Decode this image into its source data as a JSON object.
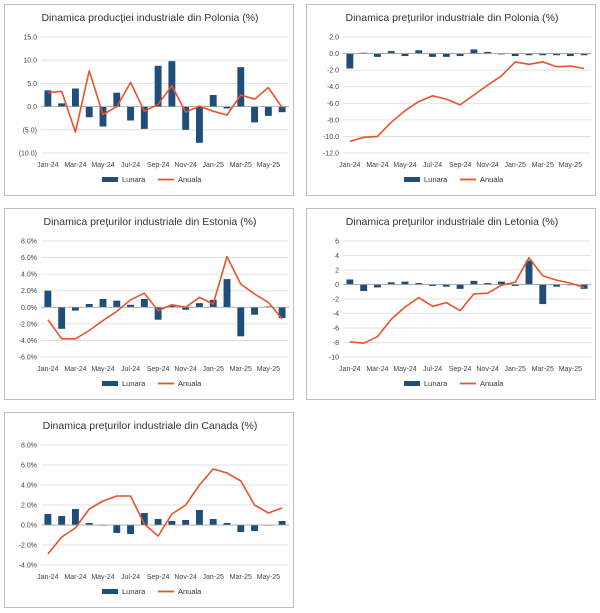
{
  "colors": {
    "monthly": "#1f4e79",
    "annual": "#e8532a",
    "grid": "#d9d9d9",
    "axis": "#9e9e9e"
  },
  "legend": {
    "monthly": "Lunara",
    "annual": "Anuala"
  },
  "chart_data": [
    {
      "type": "bar",
      "title": "Dinamica producţiei industriale din Polonia (%)",
      "categories": [
        "Jan-24",
        "Feb-24",
        "Mar-24",
        "Apr-24",
        "May-24",
        "Jun-24",
        "Jul-24",
        "Aug-24",
        "Sep-24",
        "Oct-24",
        "Nov-24",
        "Dec-24",
        "Jan-25",
        "Feb-25",
        "Mar-25",
        "Apr-25",
        "May-25",
        "Jun-25"
      ],
      "x_tick_labels": [
        "Jan-24",
        "Mar-24",
        "May-24",
        "Jul-24",
        "Sep-24",
        "Nov-24",
        "Jan-25",
        "Mar-25",
        "May-25"
      ],
      "ylim": [
        -10,
        15
      ],
      "y_ticks": [
        15,
        10,
        5,
        0,
        -5,
        -10
      ],
      "y_tick_labels": [
        "15.0",
        "10.0",
        "5.0",
        "0.0",
        "(5.0)",
        "(10.0)"
      ],
      "series": [
        {
          "name": "Lunara",
          "type": "bar",
          "values": [
            3.5,
            0.7,
            3.9,
            -2.3,
            -4.3,
            3.0,
            -3.0,
            -4.8,
            8.8,
            9.8,
            -5.0,
            -7.8,
            2.5,
            -0.4,
            8.5,
            -3.4,
            -2.0,
            -1.2
          ]
        },
        {
          "name": "Anuala",
          "type": "line",
          "values": [
            3.0,
            3.3,
            -5.5,
            7.7,
            -1.7,
            0.0,
            5.2,
            -1.0,
            0.5,
            4.5,
            -1.2,
            0.1,
            -1.0,
            -1.8,
            2.5,
            1.6,
            4.1,
            -0.2
          ]
        }
      ],
      "grid": "horizontal",
      "legend": "bottom"
    },
    {
      "type": "bar",
      "title": "Dinamica preţurilor industriale din Polonia (%)",
      "categories": [
        "Jan-24",
        "Feb-24",
        "Mar-24",
        "Apr-24",
        "May-24",
        "Jun-24",
        "Jul-24",
        "Aug-24",
        "Sep-24",
        "Oct-24",
        "Nov-24",
        "Dec-24",
        "Jan-25",
        "Feb-25",
        "Mar-25",
        "Apr-25",
        "May-25",
        "Jun-25"
      ],
      "x_tick_labels": [
        "Jan-24",
        "Mar-24",
        "May-24",
        "Jul-24",
        "Sep-24",
        "Nov-24",
        "Jan-25",
        "Mar-25",
        "May-25"
      ],
      "ylim": [
        -12,
        2
      ],
      "y_ticks": [
        2,
        0,
        -2,
        -4,
        -6,
        -8,
        -10,
        -12
      ],
      "y_tick_labels": [
        "2.0",
        "0.0",
        "-2.0",
        "-4.0",
        "-6.0",
        "-8.0",
        "-10.0",
        "-12.0"
      ],
      "series": [
        {
          "name": "Lunara",
          "type": "bar",
          "values": [
            -1.8,
            0.1,
            -0.4,
            0.3,
            -0.3,
            0.4,
            -0.4,
            -0.4,
            -0.3,
            0.5,
            0.2,
            -0.1,
            -0.3,
            -0.2,
            -0.2,
            -0.2,
            -0.3,
            -0.2
          ]
        },
        {
          "name": "Anuala",
          "type": "line",
          "values": [
            -10.6,
            -10.1,
            -10.0,
            -8.3,
            -6.9,
            -5.8,
            -5.1,
            -5.5,
            -6.2,
            -5.0,
            -3.8,
            -2.7,
            -1.0,
            -1.3,
            -1.0,
            -1.6,
            -1.5,
            -1.8
          ]
        }
      ],
      "grid": "horizontal",
      "legend": "bottom"
    },
    {
      "type": "bar",
      "title": "Dinamica preţurilor industriale din Estonia (%)",
      "categories": [
        "Jan-24",
        "Feb-24",
        "Mar-24",
        "Apr-24",
        "May-24",
        "Jun-24",
        "Jul-24",
        "Aug-24",
        "Sep-24",
        "Oct-24",
        "Nov-24",
        "Dec-24",
        "Jan-25",
        "Feb-25",
        "Mar-25",
        "Apr-25",
        "May-25",
        "Jun-25"
      ],
      "x_tick_labels": [
        "Jan-24",
        "Mar-24",
        "May-24",
        "Jul-24",
        "Sep-24",
        "Nov-24",
        "Jan-25",
        "Mar-25",
        "May-25"
      ],
      "ylim": [
        -6,
        8
      ],
      "y_ticks": [
        8,
        6,
        4,
        2,
        0,
        -2,
        -4,
        -6
      ],
      "y_tick_labels": [
        "8.0%",
        "6.0%",
        "4.0%",
        "2.0%",
        "0.0%",
        "-2.0%",
        "-4.0%",
        "-6.0%"
      ],
      "series": [
        {
          "name": "Lunara",
          "type": "bar",
          "values": [
            2.0,
            -2.6,
            -0.4,
            0.4,
            1.0,
            0.8,
            0.3,
            1.0,
            -1.5,
            0.2,
            -0.3,
            0.5,
            0.9,
            3.4,
            -3.5,
            -0.9,
            0.1,
            -1.3
          ]
        },
        {
          "name": "Anuala",
          "type": "line",
          "values": [
            -1.5,
            -3.8,
            -3.8,
            -2.8,
            -1.6,
            -0.5,
            0.9,
            1.7,
            -0.4,
            0.3,
            0.0,
            1.2,
            0.4,
            6.1,
            2.8,
            1.6,
            0.6,
            -1.4
          ]
        }
      ],
      "grid": "horizontal",
      "legend": "bottom"
    },
    {
      "type": "bar",
      "title": "Dinamica preţurilor industriale din Letonia (%)",
      "categories": [
        "Jan-24",
        "Feb-24",
        "Mar-24",
        "Apr-24",
        "May-24",
        "Jun-24",
        "Jul-24",
        "Aug-24",
        "Sep-24",
        "Oct-24",
        "Nov-24",
        "Dec-24",
        "Jan-25",
        "Feb-25",
        "Mar-25",
        "Apr-25",
        "May-25",
        "Jun-25"
      ],
      "x_tick_labels": [
        "Jan-24",
        "Mar-24",
        "May-24",
        "Jul-24",
        "Sep-24",
        "Nov-24",
        "Jan-25",
        "Mar-25",
        "May-25"
      ],
      "ylim": [
        -10,
        6
      ],
      "y_ticks": [
        6,
        4,
        2,
        0,
        -2,
        -4,
        -6,
        -8,
        -10
      ],
      "y_tick_labels": [
        "6",
        "4",
        "2",
        "0",
        "-2",
        "-4",
        "-6",
        "-8",
        "-10"
      ],
      "series": [
        {
          "name": "Lunara",
          "type": "bar",
          "values": [
            0.7,
            -0.9,
            -0.4,
            0.3,
            0.4,
            0.2,
            -0.2,
            -0.3,
            -0.6,
            0.5,
            0.2,
            0.4,
            -0.2,
            3.3,
            -2.7,
            -0.3,
            -0.1,
            -0.6
          ]
        },
        {
          "name": "Anuala",
          "type": "line",
          "values": [
            -7.9,
            -8.1,
            -7.2,
            -4.8,
            -3.1,
            -1.8,
            -3.0,
            -2.5,
            -3.6,
            -1.3,
            -1.2,
            -0.1,
            0.3,
            3.7,
            1.2,
            0.6,
            0.2,
            -0.4
          ]
        }
      ],
      "grid": "horizontal",
      "legend": "bottom"
    },
    {
      "type": "bar",
      "title": "Dinamica preţurilor industriale din Canada (%)",
      "categories": [
        "Jan-24",
        "Feb-24",
        "Mar-24",
        "Apr-24",
        "May-24",
        "Jun-24",
        "Jul-24",
        "Aug-24",
        "Sep-24",
        "Oct-24",
        "Nov-24",
        "Dec-24",
        "Jan-25",
        "Feb-25",
        "Mar-25",
        "Apr-25",
        "May-25",
        "Jun-25"
      ],
      "x_tick_labels": [
        "Jan-24",
        "Mar-24",
        "May-24",
        "Jul-24",
        "Sep-24",
        "Nov-24",
        "Jan-25",
        "Mar-25",
        "May-25"
      ],
      "ylim": [
        -4,
        8
      ],
      "y_ticks": [
        8,
        6,
        4,
        2,
        0,
        -2,
        -4
      ],
      "y_tick_labels": [
        "8.0%",
        "6.0%",
        "4.0%",
        "2.0%",
        "0.0%",
        "-2.0%",
        "-4.0%"
      ],
      "series": [
        {
          "name": "Lunara",
          "type": "bar",
          "values": [
            1.1,
            0.9,
            1.6,
            0.2,
            0.0,
            -0.8,
            -0.9,
            1.2,
            0.6,
            0.4,
            0.5,
            1.5,
            0.6,
            0.2,
            -0.7,
            -0.6,
            0.0,
            0.4
          ]
        },
        {
          "name": "Anuala",
          "type": "line",
          "values": [
            -2.9,
            -1.2,
            -0.3,
            1.6,
            2.4,
            2.9,
            2.9,
            0.1,
            -1.1,
            1.1,
            2.0,
            4.0,
            5.6,
            5.2,
            4.4,
            2.0,
            1.2,
            1.7
          ]
        }
      ],
      "grid": "horizontal",
      "legend": "bottom"
    }
  ]
}
